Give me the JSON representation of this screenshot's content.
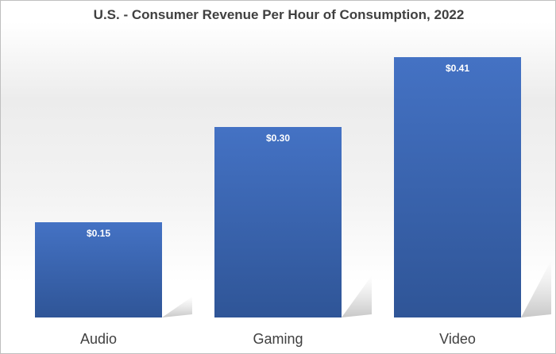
{
  "chart_data": {
    "type": "bar",
    "title": "U.S. - Consumer Revenue Per Hour of Consumption, 2022",
    "categories": [
      "Audio",
      "Gaming",
      "Video"
    ],
    "values": [
      0.15,
      0.3,
      0.41
    ],
    "data_labels": [
      "$0.15",
      "$0.30",
      "$0.41"
    ],
    "ylim": [
      0,
      0.41
    ],
    "grid": false,
    "legend": "none",
    "colors": {
      "bar_top": "#4472C4",
      "bar_bottom": "#2F5597",
      "label": "#ffffff",
      "axis_text": "#404040"
    }
  }
}
